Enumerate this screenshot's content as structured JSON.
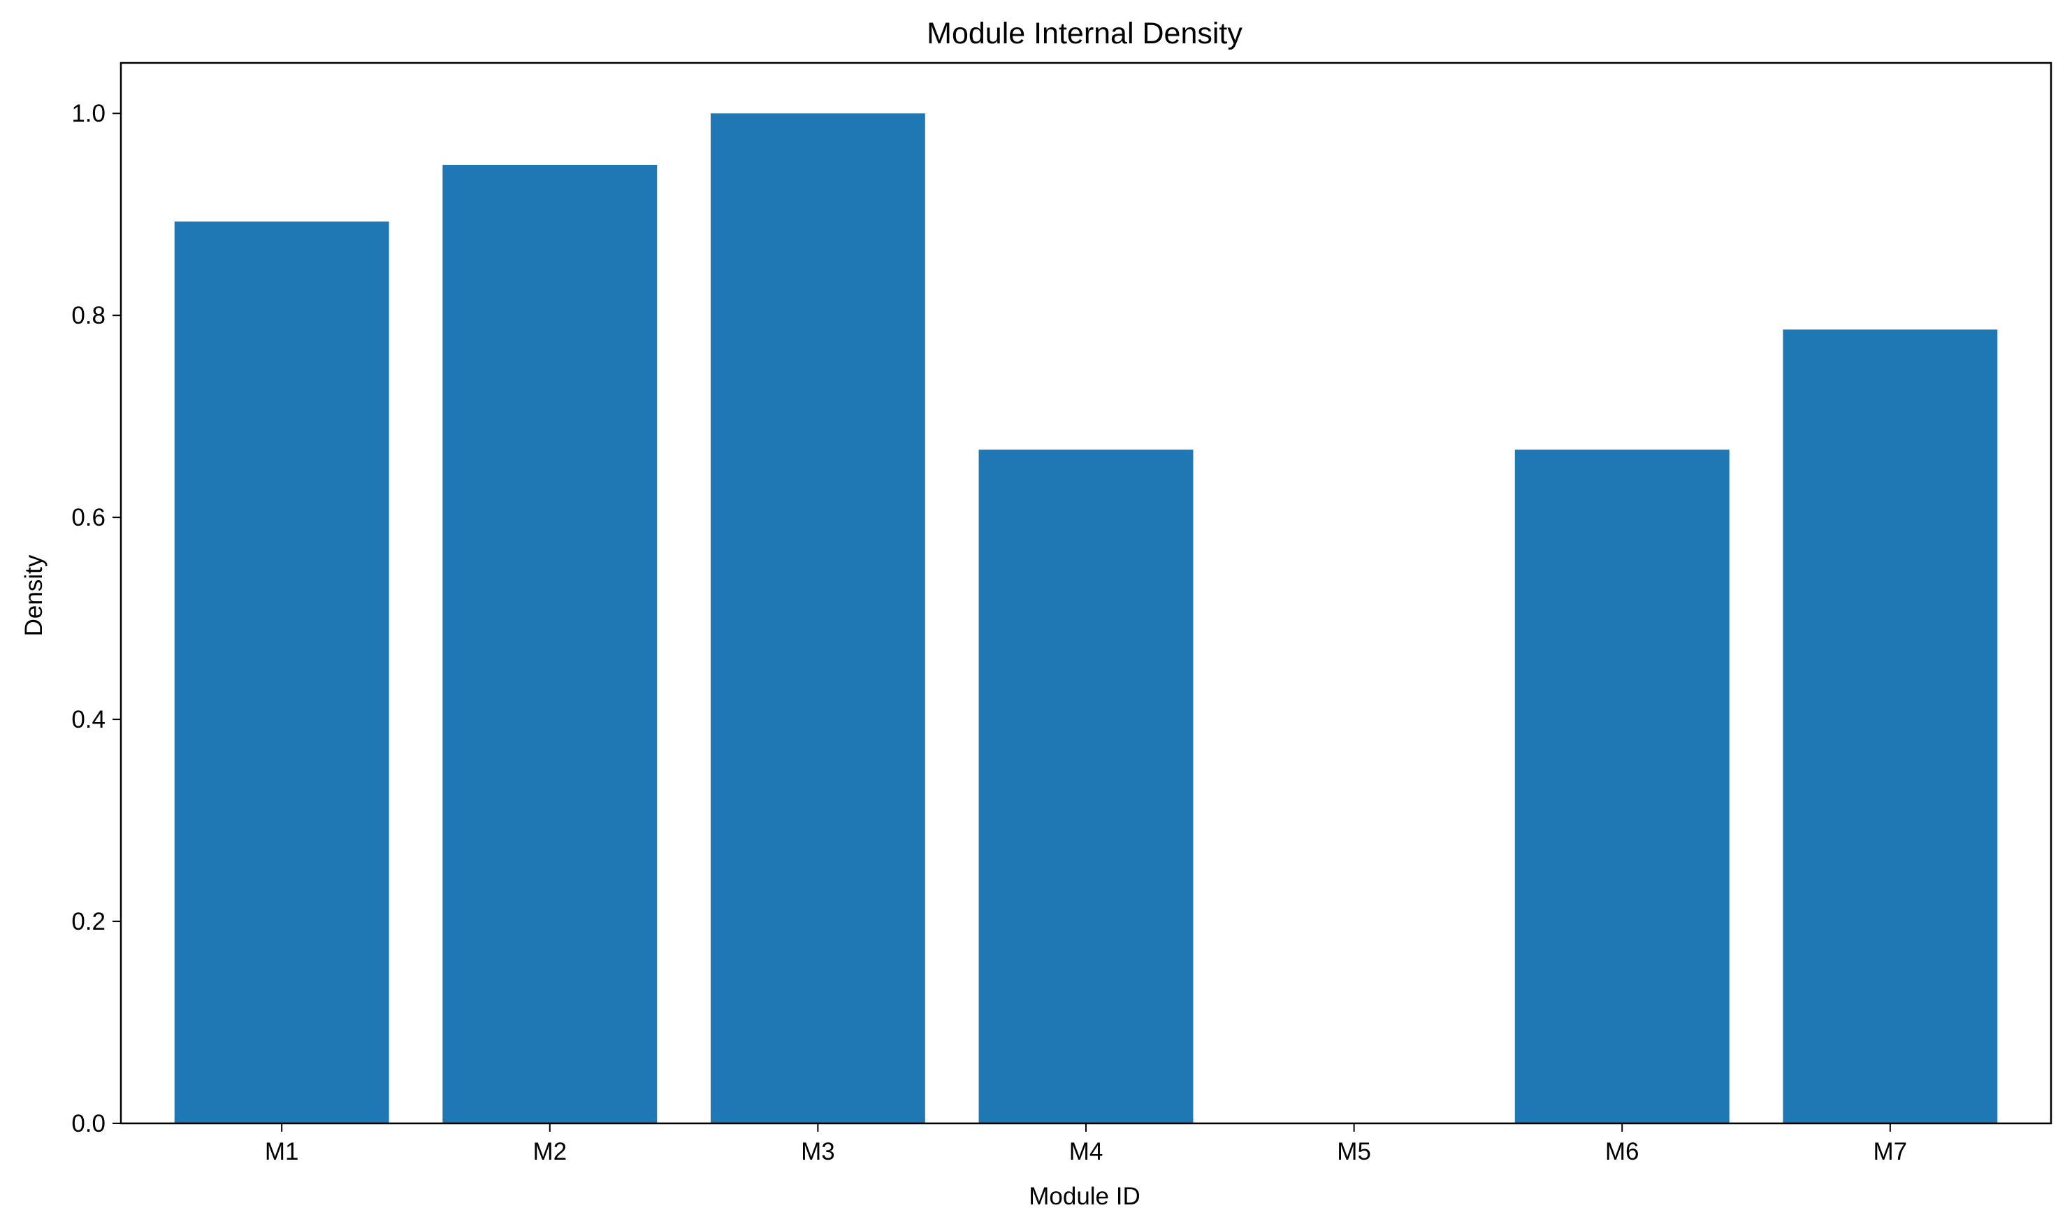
{
  "chart_data": {
    "type": "bar",
    "title": "Module Internal Density",
    "xlabel": "Module ID",
    "ylabel": "Density",
    "categories": [
      "M1",
      "M2",
      "M3",
      "M4",
      "M5",
      "M6",
      "M7"
    ],
    "values": [
      0.893,
      0.949,
      1.0,
      0.667,
      0.0,
      0.667,
      0.786
    ],
    "ylim": [
      0,
      1.05
    ],
    "yticks": [
      0.0,
      0.2,
      0.4,
      0.6,
      0.8,
      1.0
    ],
    "ytick_labels": [
      "0.0",
      "0.2",
      "0.4",
      "0.6",
      "0.8",
      "1.0"
    ],
    "bar_color": "#1f77b4",
    "grid": false,
    "legend": "none"
  }
}
